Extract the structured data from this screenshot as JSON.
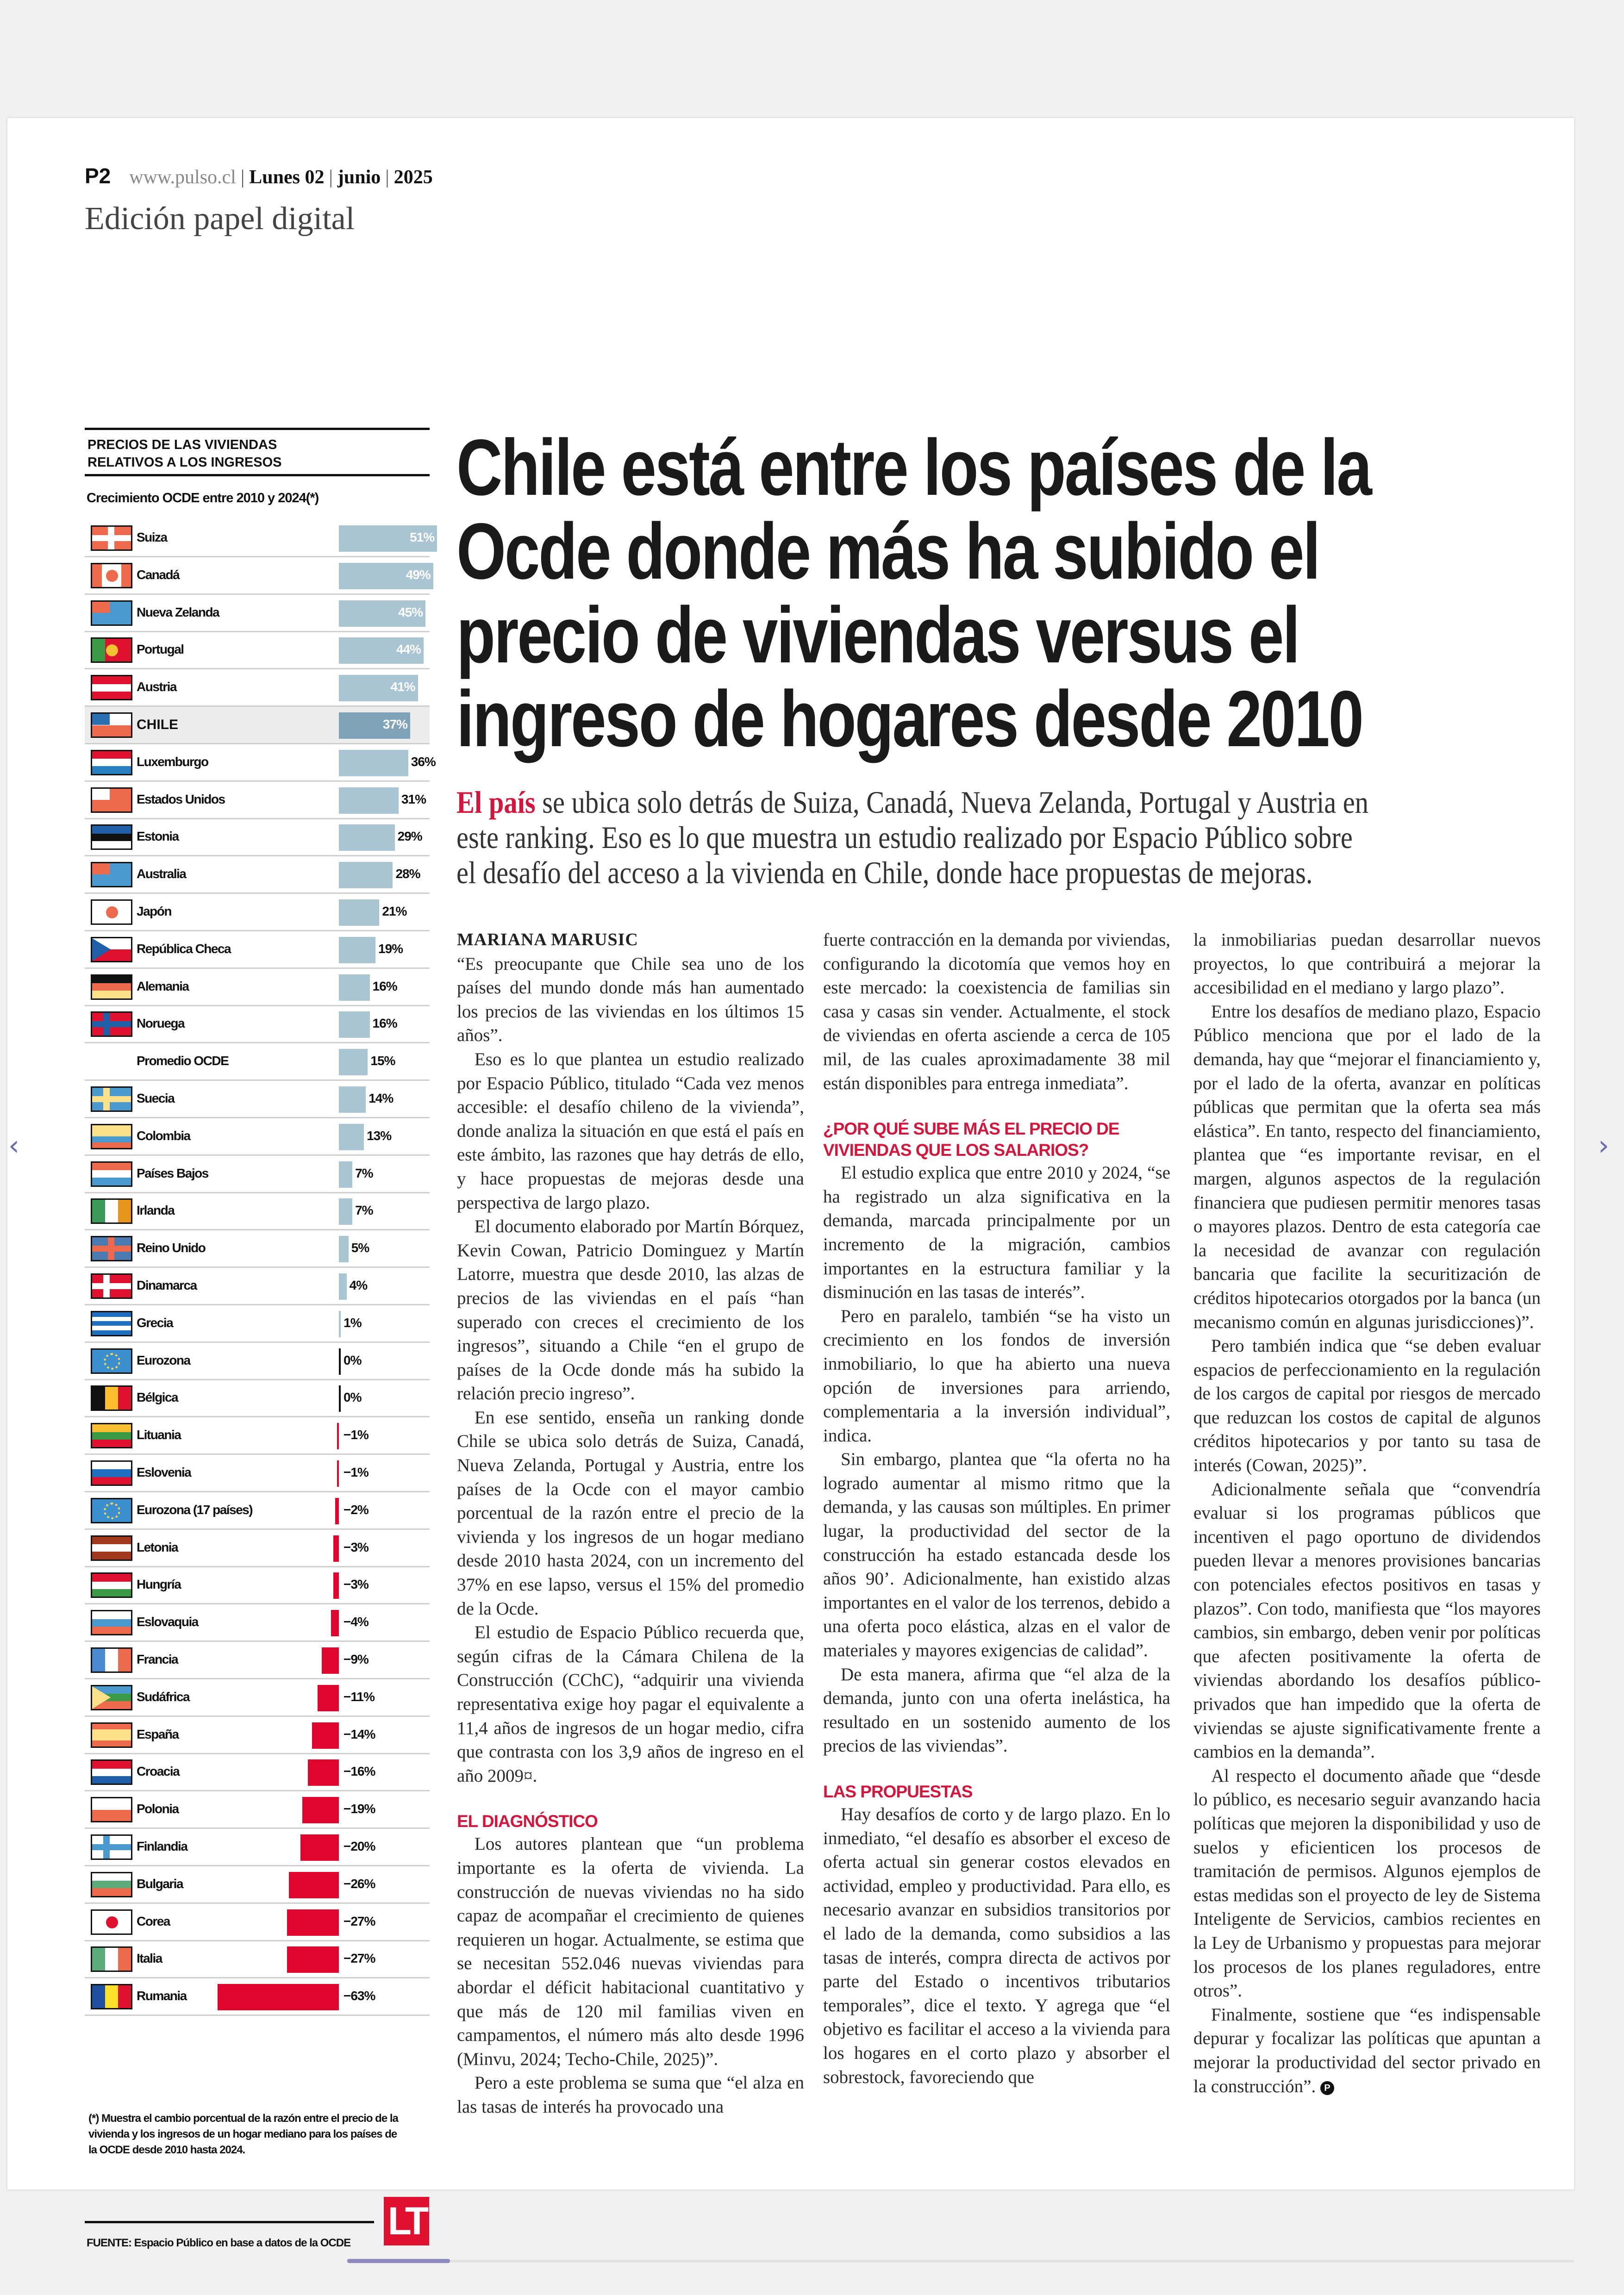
{
  "header": {
    "page": "P2",
    "url": "www.pulso.cl",
    "day": "Lunes 02",
    "month": "junio",
    "year": "2025",
    "edition": "Edición papel digital"
  },
  "headline": {
    "lines": [
      "Chile está entre los países de la",
      "Ocde donde más ha subido el",
      "precio de viviendas versus el",
      "ingreso de hogares desde 2010"
    ]
  },
  "deck": {
    "lead": "El país",
    "lines": [
      " se ubica solo detrás de Suiza, Canadá, Nueva Zelanda, Portugal y Austria en",
      "este ranking. Eso es lo que muestra un estudio realizado por Espacio Público sobre",
      "el desafío del acceso a la vivienda en Chile, donde hace propuestas de mejoras."
    ]
  },
  "chart_data": {
    "type": "bar",
    "orientation": "horizontal",
    "title": "Precios de las viviendas relativos a los ingresos",
    "subtitle": "Crecimiento OCDE entre 2010 y 2024(*)",
    "categories": [
      "Suiza",
      "Canadá",
      "Nueva Zelanda",
      "Portugal",
      "Austria",
      "CHILE",
      "Luxemburgo",
      "Estados Unidos",
      "Estonia",
      "Australia",
      "Japón",
      "República Checa",
      "Alemania",
      "Noruega",
      "Promedio OCDE",
      "Suecia",
      "Colombia",
      "Países Bajos",
      "Irlanda",
      "Reino Unido",
      "Dinamarca",
      "Grecia",
      "Eurozona",
      "Bélgica",
      "Lituania",
      "Eslovenia",
      "Eurozona (17 países)",
      "Letonia",
      "Hungría",
      "Eslovaquia",
      "Francia",
      "Sudáfrica",
      "España",
      "Croacia",
      "Polonia",
      "Finlandia",
      "Bulgaria",
      "Corea",
      "Italia",
      "Rumania"
    ],
    "values": [
      51,
      49,
      45,
      44,
      41,
      37,
      36,
      31,
      29,
      28,
      21,
      19,
      16,
      16,
      15,
      14,
      13,
      7,
      7,
      5,
      4,
      1,
      0,
      0,
      -1,
      -1,
      -2,
      -3,
      -3,
      -4,
      -9,
      -11,
      -14,
      -16,
      -19,
      -20,
      -26,
      -27,
      -27,
      -63
    ],
    "unit": "%",
    "highlight": "CHILE",
    "colors": {
      "positive": "#a9c4d3",
      "highlight": "#7fa3b9",
      "negative": "#e0052d"
    },
    "footnote": "(*) Muestra el cambio porcentual de la razón entre el precio de la vivienda y los ingresos de un hogar mediano para los países de la OCDE desde 2010 hasta 2024.",
    "source": "FUENTE: Espacio Público en base a datos de la OCDE",
    "logo": "LT"
  },
  "flags": [
    {
      "icon": "flag-switzerland-icon",
      "bg": "#ee6a4c",
      "cross": "#ffffff",
      "cross_type": "center"
    },
    {
      "icon": "flag-canada-icon",
      "dir": "v",
      "colors": [
        "#ee6a4c",
        "#ffffff",
        "#ffffff",
        "#ee6a4c"
      ],
      "dot": "#ee6a4c"
    },
    {
      "icon": "flag-new-zealand-icon",
      "bg": "#4a9ad0",
      "canton": "#ee6a4c"
    },
    {
      "icon": "flag-portugal-icon",
      "dir": "v",
      "colors": [
        "#3a9a46",
        "#e0102f",
        "#e0102f"
      ],
      "dot": "#f2c230"
    },
    {
      "icon": "flag-austria-icon",
      "dir": "h",
      "colors": [
        "#e0102f",
        "#ffffff",
        "#e0102f"
      ]
    },
    {
      "icon": "flag-chile-icon",
      "dir": "h",
      "colors": [
        "#ffffff",
        "#ee6a4c"
      ],
      "canton": "#2a6fb0"
    },
    {
      "icon": "flag-luxembourg-icon",
      "dir": "h",
      "colors": [
        "#e0102f",
        "#ffffff",
        "#2a7fc0"
      ]
    },
    {
      "icon": "flag-united-states-icon",
      "bg": "#ee6a4c",
      "canton": "#ffffff"
    },
    {
      "icon": "flag-estonia-icon",
      "dir": "h",
      "colors": [
        "#1f5fa8",
        "#111111",
        "#ffffff"
      ]
    },
    {
      "icon": "flag-australia-icon",
      "bg": "#4a9ad0",
      "canton": "#ee6a4c"
    },
    {
      "icon": "flag-japan-icon",
      "bg": "#ffffff",
      "dot": "#ee6a4c"
    },
    {
      "icon": "flag-czech-republic-icon",
      "dir": "h",
      "colors": [
        "#ffffff",
        "#e0102f"
      ],
      "tri": "#1f5fa8"
    },
    {
      "icon": "flag-germany-icon",
      "dir": "h",
      "colors": [
        "#111111",
        "#ee6a4c",
        "#fde08a"
      ]
    },
    {
      "icon": "flag-norway-icon",
      "bg": "#e0102f",
      "cross": "#1f5fa8",
      "cross_type": "nordic"
    },
    null,
    {
      "icon": "flag-sweden-icon",
      "bg": "#4a9ad0",
      "cross": "#fde08a",
      "cross_type": "nordic"
    },
    {
      "icon": "flag-colombia-icon",
      "dir": "h",
      "colors": [
        "#fde08a",
        "#fde08a",
        "#4a9ad0",
        "#ee6a4c"
      ]
    },
    {
      "icon": "flag-netherlands-icon",
      "dir": "h",
      "colors": [
        "#ee6a4c",
        "#ffffff",
        "#4a9ad0"
      ]
    },
    {
      "icon": "flag-ireland-icon",
      "dir": "v",
      "colors": [
        "#3a9a5a",
        "#ffffff",
        "#e8941a"
      ]
    },
    {
      "icon": "flag-united-kingdom-icon",
      "bg": "#4a7ab0",
      "cross": "#ee6a4c",
      "cross_type": "center"
    },
    {
      "icon": "flag-denmark-icon",
      "bg": "#e0102f",
      "cross": "#ffffff",
      "cross_type": "nordic"
    },
    {
      "icon": "flag-greece-icon",
      "dir": "h",
      "colors": [
        "#1f6fc0",
        "#ffffff",
        "#1f6fc0",
        "#ffffff",
        "#1f6fc0"
      ]
    },
    {
      "icon": "flag-eurozone-icon",
      "bg": "#3a8fcc",
      "ring": "#f0d060"
    },
    {
      "icon": "flag-belgium-icon",
      "dir": "v",
      "colors": [
        "#111111",
        "#fbc02d",
        "#e0102f"
      ]
    },
    {
      "icon": "flag-lithuania-icon",
      "dir": "h",
      "colors": [
        "#fbc02d",
        "#3a9a46",
        "#e0102f"
      ]
    },
    {
      "icon": "flag-slovenia-icon",
      "dir": "h",
      "colors": [
        "#ffffff",
        "#1f6fc0",
        "#e0102f"
      ]
    },
    {
      "icon": "flag-eurozone-icon",
      "bg": "#3a8fcc",
      "ring": "#f0d060"
    },
    {
      "icon": "flag-latvia-icon",
      "dir": "h",
      "colors": [
        "#a03a1a",
        "#ffffff",
        "#a03a1a"
      ]
    },
    {
      "icon": "flag-hungary-icon",
      "dir": "h",
      "colors": [
        "#e0102f",
        "#ffffff",
        "#3a9a46"
      ]
    },
    {
      "icon": "flag-slovakia-icon",
      "dir": "h",
      "colors": [
        "#ffffff",
        "#4a9ad0",
        "#ee6a4c"
      ]
    },
    {
      "icon": "flag-france-icon",
      "dir": "v",
      "colors": [
        "#4a8ad0",
        "#ffffff",
        "#ee6a4c"
      ]
    },
    {
      "icon": "flag-south-africa-icon",
      "dir": "h",
      "colors": [
        "#4a9ad0",
        "#3a9a46",
        "#ee6a4c"
      ],
      "tri": "#fde08a"
    },
    {
      "icon": "flag-spain-icon",
      "dir": "h",
      "colors": [
        "#ee6a4c",
        "#fde08a",
        "#fde08a",
        "#ee6a4c"
      ]
    },
    {
      "icon": "flag-croatia-icon",
      "dir": "h",
      "colors": [
        "#e0102f",
        "#ffffff",
        "#1f5fa8"
      ]
    },
    {
      "icon": "flag-poland-icon",
      "dir": "h",
      "colors": [
        "#ffffff",
        "#ee6a4c"
      ]
    },
    {
      "icon": "flag-finland-icon",
      "bg": "#ffffff",
      "cross": "#4a9ad0",
      "cross_type": "nordic"
    },
    {
      "icon": "flag-bulgaria-icon",
      "dir": "h",
      "colors": [
        "#ffffff",
        "#5aaa7a",
        "#ee6a4c"
      ]
    },
    {
      "icon": "flag-south-korea-icon",
      "bg": "#ffffff",
      "dot": "#e0102f"
    },
    {
      "icon": "flag-italy-icon",
      "dir": "v",
      "colors": [
        "#5aaa7a",
        "#ffffff",
        "#ee6a4c"
      ]
    },
    {
      "icon": "flag-romania-icon",
      "dir": "v",
      "colors": [
        "#1f4fa0",
        "#fde02a",
        "#e0102f"
      ]
    }
  ],
  "article": {
    "columns": [
      [
        {
          "type": "byline",
          "text": "MARIANA MARUSIC"
        },
        {
          "type": "p",
          "cont": true,
          "text": "“Es preocupante que Chile sea uno de los países del mundo donde más han aumentado los precios de las viviendas en los últimos 15 años”."
        },
        {
          "type": "p",
          "text": "Eso es lo que plantea un estudio realizado por Espacio Público, titulado “Cada vez menos accesible: el desafío chileno de la vivienda”, donde analiza la situación en que está el país en este ámbito, las razones que hay detrás de ello, y hace propuestas de mejoras desde una perspectiva de largo plazo."
        },
        {
          "type": "p",
          "text": "El documento elaborado por Martín Bórquez, Kevin Cowan, Patricio Dominguez y Martín Latorre, muestra que desde 2010, las alzas de precios de las viviendas en el país “han superado con creces el crecimiento de los ingresos”, situando a Chile “en el grupo de países de la Ocde donde más ha subido la relación precio ingreso”."
        },
        {
          "type": "p",
          "text": "En ese sentido, enseña un ranking donde Chile se ubica solo detrás de Suiza, Canadá, Nueva Zelanda, Portugal y Austria, entre los países de la Ocde con el mayor cambio porcentual de la razón entre el precio de la vivienda y los ingresos de un hogar mediano desde 2010 hasta 2024, con un incremento del 37% en ese lapso, versus el 15% del promedio de la Ocde."
        },
        {
          "type": "p",
          "text": "El estudio de Espacio Público recuerda que, según cifras de la Cámara Chilena de la Construcción (CChC), “adquirir una vivienda representativa exige hoy pagar el equivalente a 11,4 años de ingresos de un hogar medio, cifra que contrasta con los 3,9 años de ingreso en el año 2009¤."
        },
        {
          "type": "sub",
          "text": "EL DIAGNÓSTICO"
        },
        {
          "type": "p",
          "text": "Los autores plantean que “un problema importante es la oferta de vivienda. La construcción de nuevas viviendas no ha sido capaz de acompañar el crecimiento de quienes requieren un hogar. Actualmente, se estima que se necesitan 552.046 nuevas viviendas para abordar el déficit habitacional cuantitativo y que más de 120 mil familias viven en campamentos, el número más alto desde 1996 (Minvu, 2024; Techo-Chile, 2025)”."
        },
        {
          "type": "p",
          "text": "Pero a este problema se suma que “el alza en las tasas de interés ha provocado una"
        }
      ],
      [
        {
          "type": "p",
          "cont": true,
          "text": "fuerte contracción en la demanda por viviendas, configurando la dicotomía que vemos hoy en este mercado: la coexistencia de familias sin casa y casas sin vender. Actualmente, el stock de viviendas en oferta asciende a cerca de 105 mil, de las cuales aproximadamente 38 mil están disponibles para entrega inmediata”."
        },
        {
          "type": "sub",
          "text": "¿POR QUÉ SUBE MÁS EL PRECIO DE VIVIENDAS QUE LOS SALARIOS?"
        },
        {
          "type": "p",
          "text": "El estudio explica que entre 2010 y 2024, “se ha registrado un alza significativa en la demanda, marcada principalmente por un incremento de la migración, cambios importantes en la estructura familiar y la disminución en las tasas de interés”."
        },
        {
          "type": "p",
          "text": "Pero en paralelo, también “se ha visto un crecimiento en los fondos de inversión inmobiliario, lo que ha abierto una nueva opción de inversiones para arriendo, complementaria a la inversión individual”, indica."
        },
        {
          "type": "p",
          "text": "Sin embargo, plantea que “la oferta no ha logrado aumentar al mismo ritmo que la demanda, y las causas son múltiples. En primer lugar, la productividad del sector de la construcción ha estado estancada desde los años 90’. Adicionalmente, han existido alzas importantes en el valor de los terrenos, debido a una oferta poco elástica, alzas en el valor de materiales y mayores exigencias de calidad”."
        },
        {
          "type": "p",
          "text": "De esta manera, afirma que “el alza de la demanda, junto con una oferta inelástica, ha resultado en un sostenido aumento de los precios de las viviendas”."
        },
        {
          "type": "sub",
          "text": "LAS PROPUESTAS"
        },
        {
          "type": "p",
          "text": "Hay desafíos de corto y de largo plazo. En lo inmediato, “el desafío es absorber el exceso de oferta actual sin generar costos elevados en actividad, empleo y productividad. Para ello, es necesario avanzar en subsidios transitorios por el lado de la demanda, como subsidios a las tasas de interés, compra directa de activos por parte del Estado o incentivos tributarios temporales”, dice el texto. Y agrega que “el objetivo es facilitar el acceso a la vivienda para los hogares en el corto plazo y absorber el sobrestock, favoreciendo que"
        }
      ],
      [
        {
          "type": "p",
          "cont": true,
          "text": "la inmobiliarias puedan desarrollar nuevos proyectos, lo que contribuirá a mejorar la accesibilidad en el mediano y largo plazo”."
        },
        {
          "type": "p",
          "text": "Entre los desafíos de mediano plazo, Espacio Público menciona que por el lado de la demanda, hay que “mejorar el financiamiento y, por el lado de la oferta, avanzar en políticas públicas que permitan que la oferta sea más elástica”. En tanto, respecto del financiamiento, plantea que “es importante revisar, en el margen, algunos aspectos de la regulación financiera que pudiesen permitir menores tasas o mayores plazos. Dentro de esta categoría cae la necesidad de avanzar con regulación bancaria que facilite la securitización de créditos hipotecarios otorgados por la banca (un mecanismo común en algunas jurisdicciones)”."
        },
        {
          "type": "p",
          "text": "Pero también indica que “se deben evaluar espacios de perfeccionamiento en la regulación de los cargos de capital por riesgos de mercado que reduzcan los costos de capital de algunos créditos hipotecarios y por tanto su tasa de interés (Cowan, 2025)”."
        },
        {
          "type": "p",
          "text": "Adicionalmente señala que “convendría evaluar si los programas públicos que incentiven el pago oportuno de dividendos pueden llevar a menores provisiones bancarias con potenciales efectos positivos en tasas y plazos”. Con todo, manifiesta que “los mayores cambios, sin embargo, deben venir por políticas que afecten positivamente la oferta de viviendas abordando los desafíos público-privados que han impedido que la oferta de viviendas se ajuste significativamente frente a cambios en la demanda”."
        },
        {
          "type": "p",
          "text": "Al respecto el documento añade que “desde lo público, es necesario seguir avanzando hacia políticas que mejoren la disponibilidad y uso de suelos y eficienticen los procesos de tramitación de permisos. Algunos ejemplos de estas medidas son el proyecto de ley de Sistema Inteligente de Servicios, cambios recientes en la Ley de Urbanismo y propuestas para mejorar los procesos de los planes reguladores, entre otros”."
        },
        {
          "type": "p",
          "end": true,
          "text": "Finalmente, sostiene que “es indispensable depurar y focalizar las políticas que apuntan a mejorar la productividad del sector privado en la construcción”."
        }
      ]
    ],
    "end_mark": "P"
  },
  "nav": {
    "prev_icon": "chevron-left-icon",
    "next_icon": "chevron-right-icon",
    "prev": "‹",
    "next": "›"
  }
}
